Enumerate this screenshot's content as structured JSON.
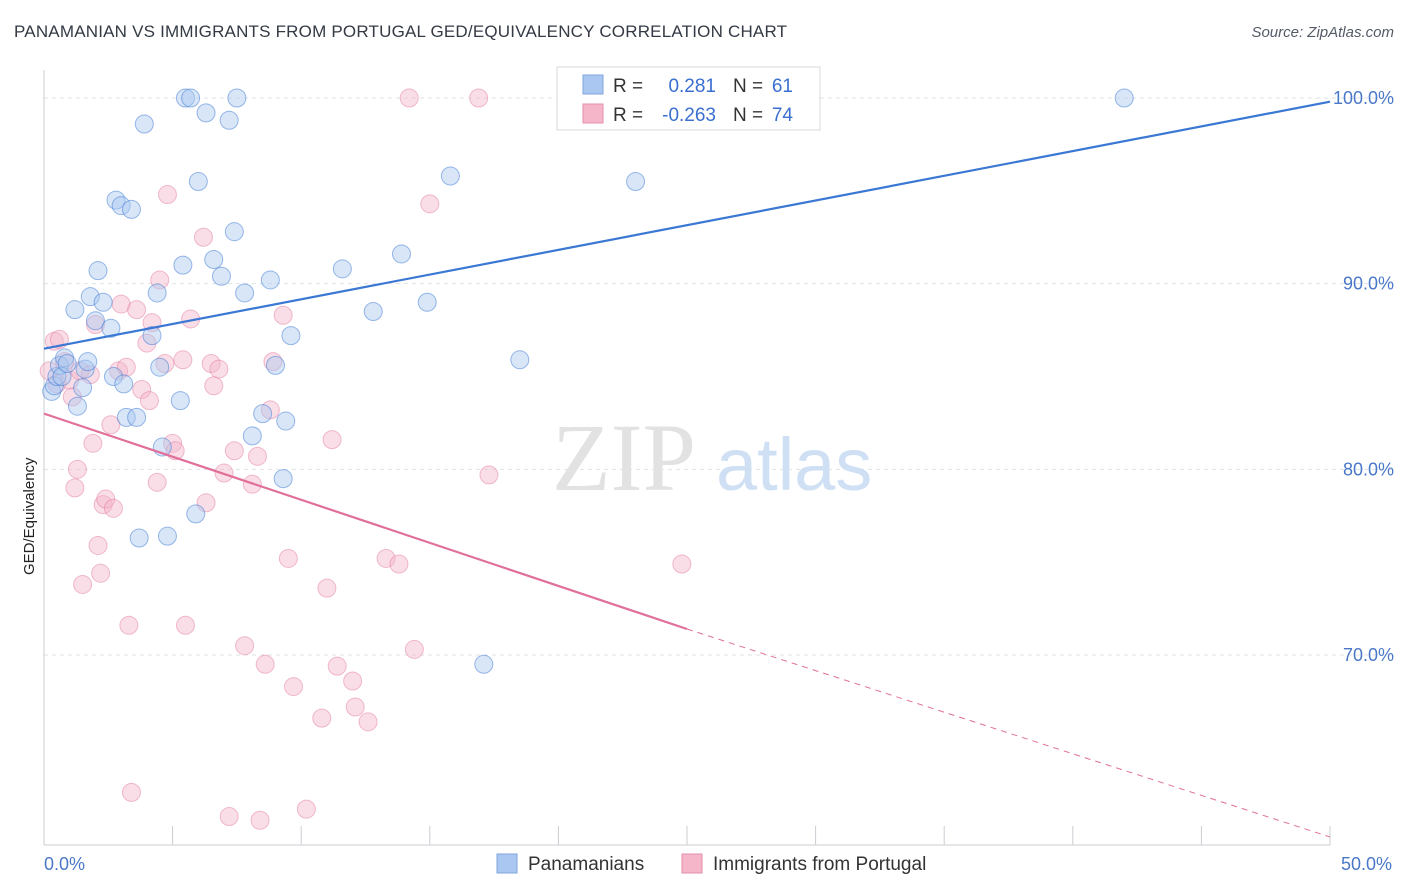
{
  "header": {
    "title": "PANAMANIAN VS IMMIGRANTS FROM PORTUGAL GED/EQUIVALENCY CORRELATION CHART",
    "source": "Source: ZipAtlas.com"
  },
  "watermark": {
    "zip": "ZIP",
    "atlas": "atlas"
  },
  "legend": {
    "rows": [
      {
        "r_label": "R =",
        "r_value": "0.281",
        "n_label": "N =",
        "n_value": "61",
        "color": "#a9c7f0"
      },
      {
        "r_label": "R =",
        "r_value": "-0.263",
        "n_label": "N =",
        "n_value": "74",
        "color": "#f5b6ca"
      }
    ]
  },
  "bottom_legend": {
    "items": [
      {
        "label": "Panamanians",
        "color": "#a9c7f0"
      },
      {
        "label": "Immigrants from Portugal",
        "color": "#f5b6ca"
      }
    ]
  },
  "chart_data": {
    "type": "scatter",
    "title": "PANAMANIAN VS IMMIGRANTS FROM PORTUGAL GED/EQUIVALENCY CORRELATION CHART",
    "ylabel": "GED/Equivalency",
    "xlabel": "",
    "xlim": [
      0,
      50
    ],
    "ylim": [
      60,
      101.5
    ],
    "x_tick_labels": [
      "0.0%",
      "50.0%"
    ],
    "y_tick_labels": [
      "70.0%",
      "80.0%",
      "90.0%",
      "100.0%"
    ],
    "y_ticks": [
      70,
      80,
      90,
      100
    ],
    "grid": "horizontal dashed",
    "legend_placement": "top-center",
    "colors": {
      "blue": "#3a78d4",
      "pink": "#e0709a",
      "blue_fill": "#a9c7f0",
      "pink_fill": "#f5b6ca"
    },
    "series": [
      {
        "name": "Panamanians",
        "trend": {
          "x0": 0,
          "y0": 86.5,
          "x1": 50,
          "y1": 99.8
        },
        "points": [
          [
            0.3,
            84.2
          ],
          [
            0.4,
            84.5
          ],
          [
            0.5,
            85.0
          ],
          [
            0.6,
            85.6
          ],
          [
            0.7,
            85.0
          ],
          [
            0.8,
            86.0
          ],
          [
            0.9,
            85.7
          ],
          [
            1.2,
            88.6
          ],
          [
            1.3,
            83.4
          ],
          [
            1.5,
            84.4
          ],
          [
            1.6,
            85.4
          ],
          [
            1.7,
            85.8
          ],
          [
            1.8,
            89.3
          ],
          [
            2.0,
            88.0
          ],
          [
            2.1,
            90.7
          ],
          [
            2.3,
            89.0
          ],
          [
            2.6,
            87.6
          ],
          [
            2.7,
            85.0
          ],
          [
            2.8,
            94.5
          ],
          [
            3.0,
            94.2
          ],
          [
            3.1,
            84.6
          ],
          [
            3.2,
            82.8
          ],
          [
            3.4,
            94.0
          ],
          [
            3.6,
            82.8
          ],
          [
            3.7,
            76.3
          ],
          [
            3.9,
            98.6
          ],
          [
            4.2,
            87.2
          ],
          [
            4.4,
            89.5
          ],
          [
            4.5,
            85.5
          ],
          [
            4.6,
            81.2
          ],
          [
            4.8,
            76.4
          ],
          [
            5.3,
            83.7
          ],
          [
            5.4,
            91.0
          ],
          [
            5.5,
            100.0
          ],
          [
            5.7,
            100.0
          ],
          [
            5.9,
            77.6
          ],
          [
            6.0,
            95.5
          ],
          [
            6.3,
            99.2
          ],
          [
            6.6,
            91.3
          ],
          [
            6.9,
            90.4
          ],
          [
            7.2,
            98.8
          ],
          [
            7.4,
            92.8
          ],
          [
            7.5,
            100.0
          ],
          [
            7.8,
            89.5
          ],
          [
            8.1,
            81.8
          ],
          [
            8.5,
            83.0
          ],
          [
            8.8,
            90.2
          ],
          [
            9.0,
            85.6
          ],
          [
            9.3,
            79.5
          ],
          [
            9.4,
            82.6
          ],
          [
            9.6,
            87.2
          ],
          [
            11.6,
            90.8
          ],
          [
            12.8,
            88.5
          ],
          [
            13.9,
            91.6
          ],
          [
            14.9,
            89.0
          ],
          [
            15.8,
            95.8
          ],
          [
            17.1,
            69.5
          ],
          [
            18.5,
            85.9
          ],
          [
            23.0,
            95.5
          ],
          [
            23.2,
            100.0
          ],
          [
            42.0,
            100.0
          ]
        ]
      },
      {
        "name": "Immigrants from Portugal",
        "trend": {
          "x0": 0,
          "y0": 83.0,
          "x1": 25,
          "y1": 71.4,
          "dash_to_x": 50,
          "dash_to_y": 60.2
        },
        "points": [
          [
            0.2,
            85.3
          ],
          [
            0.4,
            86.9
          ],
          [
            0.5,
            84.6
          ],
          [
            0.6,
            87.0
          ],
          [
            0.8,
            85.8
          ],
          [
            1.0,
            84.8
          ],
          [
            1.1,
            83.9
          ],
          [
            1.2,
            79.0
          ],
          [
            1.3,
            80.0
          ],
          [
            1.4,
            85.3
          ],
          [
            1.5,
            73.8
          ],
          [
            1.8,
            85.1
          ],
          [
            1.9,
            81.4
          ],
          [
            2.0,
            87.8
          ],
          [
            2.1,
            75.9
          ],
          [
            2.2,
            74.4
          ],
          [
            2.3,
            78.1
          ],
          [
            2.4,
            78.4
          ],
          [
            2.6,
            82.4
          ],
          [
            2.7,
            77.9
          ],
          [
            2.9,
            85.3
          ],
          [
            3.0,
            88.9
          ],
          [
            3.2,
            85.5
          ],
          [
            3.3,
            71.6
          ],
          [
            3.4,
            62.6
          ],
          [
            3.6,
            88.6
          ],
          [
            3.8,
            84.3
          ],
          [
            4.0,
            86.8
          ],
          [
            4.1,
            83.7
          ],
          [
            4.2,
            87.9
          ],
          [
            4.4,
            79.3
          ],
          [
            4.5,
            90.2
          ],
          [
            4.7,
            85.7
          ],
          [
            4.8,
            94.8
          ],
          [
            5.0,
            81.4
          ],
          [
            5.1,
            81.0
          ],
          [
            5.4,
            85.9
          ],
          [
            5.5,
            71.6
          ],
          [
            5.7,
            88.1
          ],
          [
            6.2,
            92.5
          ],
          [
            6.3,
            78.2
          ],
          [
            6.5,
            85.7
          ],
          [
            6.6,
            84.5
          ],
          [
            6.8,
            85.4
          ],
          [
            7.0,
            79.8
          ],
          [
            7.2,
            61.3
          ],
          [
            7.4,
            81.0
          ],
          [
            7.8,
            70.5
          ],
          [
            8.1,
            79.2
          ],
          [
            8.3,
            80.7
          ],
          [
            8.4,
            61.1
          ],
          [
            8.6,
            69.5
          ],
          [
            8.8,
            83.2
          ],
          [
            8.9,
            85.8
          ],
          [
            9.3,
            88.3
          ],
          [
            9.5,
            75.2
          ],
          [
            9.7,
            68.3
          ],
          [
            10.2,
            61.7
          ],
          [
            10.8,
            66.6
          ],
          [
            11.0,
            73.6
          ],
          [
            11.2,
            81.6
          ],
          [
            11.4,
            69.4
          ],
          [
            12.0,
            68.6
          ],
          [
            12.1,
            67.2
          ],
          [
            12.6,
            66.4
          ],
          [
            13.3,
            75.2
          ],
          [
            13.8,
            74.9
          ],
          [
            14.2,
            100.0
          ],
          [
            14.4,
            70.3
          ],
          [
            15.0,
            94.3
          ],
          [
            16.9,
            100.0
          ],
          [
            17.3,
            79.7
          ],
          [
            24.8,
            74.9
          ],
          [
            26.5,
            100.0
          ]
        ]
      }
    ]
  }
}
